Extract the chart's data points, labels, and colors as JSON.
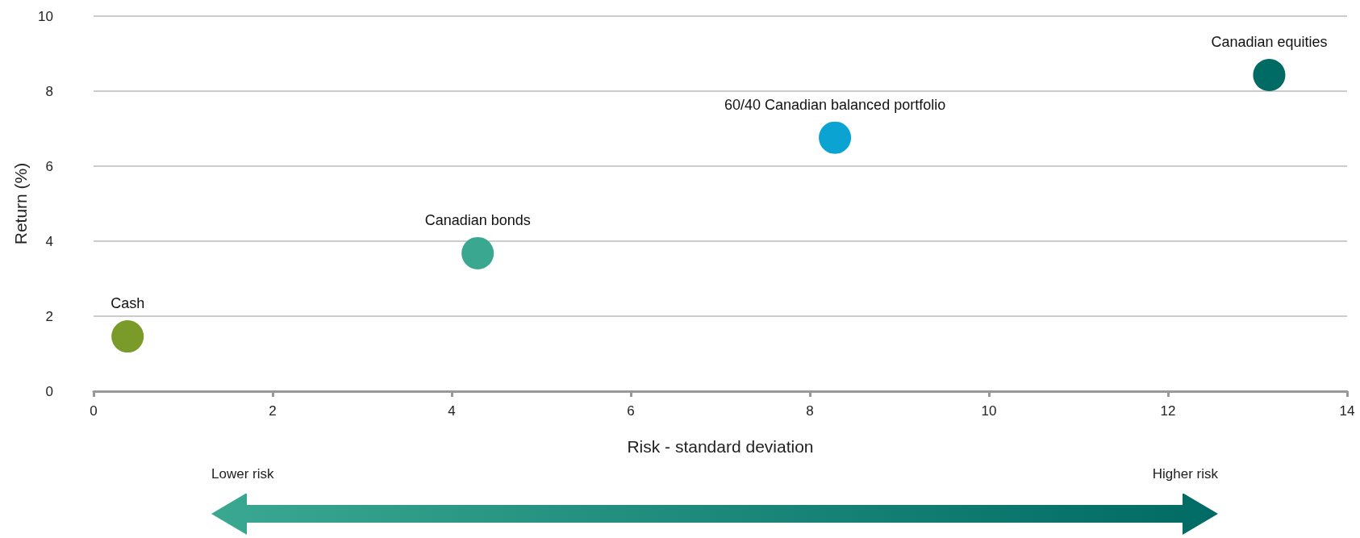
{
  "chart_data": {
    "type": "scatter",
    "xlabel": "Risk - standard deviation",
    "ylabel": "Return (%)",
    "xlim": [
      0,
      14
    ],
    "xticks": [
      0,
      2,
      4,
      6,
      8,
      10,
      12,
      14
    ],
    "ylim": [
      0,
      10
    ],
    "yticks": [
      0,
      2,
      4,
      6,
      8,
      10
    ],
    "grid": "y",
    "marker": "circle",
    "series": [
      {
        "name": "Cash",
        "color": "#7a9a2a",
        "x": [
          0.38
        ],
        "values": [
          1.46
        ]
      },
      {
        "name": "Canadian bonds",
        "color": "#3aa891",
        "x": [
          4.29
        ],
        "values": [
          3.68
        ]
      },
      {
        "name": "60/40 Canadian balanced portfolio",
        "color": "#0aa3d2",
        "x": [
          8.28
        ],
        "values": [
          6.76
        ]
      },
      {
        "name": "Canadian equities",
        "color": "#006a64",
        "x": [
          13.13
        ],
        "values": [
          8.43
        ]
      }
    ],
    "annotations": [
      "Lower risk",
      "Higher risk"
    ]
  }
}
